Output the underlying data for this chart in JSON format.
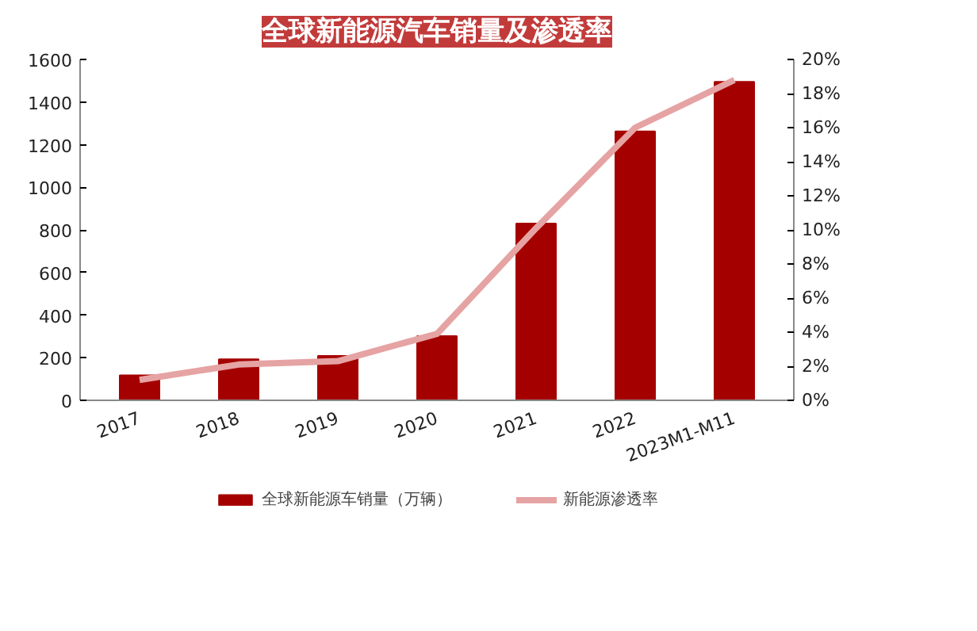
{
  "chart_data": {
    "type": "bar",
    "title": "全球新能源汽车销量及渗透率",
    "categories": [
      "2017",
      "2018",
      "2019",
      "2020",
      "2021",
      "2022",
      "2023M1-M11"
    ],
    "series": [
      {
        "name": "全球新能源车销量（万辆）",
        "color": "#a50000",
        "values": [
          117,
          193,
          208,
          301,
          830,
          1262,
          1495
        ]
      },
      {
        "name": "新能源渗透率",
        "type": "line",
        "axis": "y2",
        "color": "#e6a3a3",
        "values": [
          1.2,
          2.1,
          2.3,
          3.9,
          10.1,
          16.0,
          18.8
        ]
      }
    ],
    "ylim": [
      0,
      1600
    ],
    "yticks": [
      0,
      200,
      400,
      600,
      800,
      1000,
      1200,
      1400,
      1600
    ],
    "y2lim": [
      0,
      20
    ],
    "y2ticks": [
      {
        "value": 0,
        "label": "0%"
      },
      {
        "value": 2,
        "label": "2%"
      },
      {
        "value": 4,
        "label": "4%"
      },
      {
        "value": 6,
        "label": "6%"
      },
      {
        "value": 8,
        "label": "8%"
      },
      {
        "value": 10,
        "label": "10%"
      },
      {
        "value": 12,
        "label": "12%"
      },
      {
        "value": 14,
        "label": "14%"
      },
      {
        "value": 16,
        "label": "16%"
      },
      {
        "value": 18,
        "label": "18%"
      },
      {
        "value": 20,
        "label": "20%"
      }
    ],
    "grid": false,
    "legend": "bottom",
    "marker": "none",
    "line_style": "solid"
  }
}
